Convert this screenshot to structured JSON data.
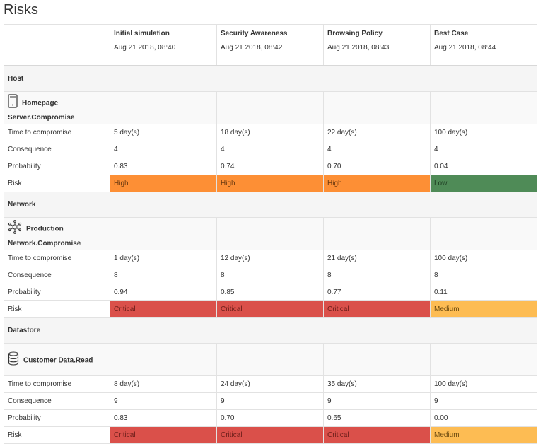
{
  "page_title": "Risks",
  "scenarios": [
    {
      "name": "Initial simulation",
      "date": "Aug 21 2018, 08:40"
    },
    {
      "name": "Security Awareness",
      "date": "Aug 21 2018, 08:42"
    },
    {
      "name": "Browsing Policy",
      "date": "Aug 21 2018, 08:43"
    },
    {
      "name": "Best Case",
      "date": "Aug 21 2018, 08:44"
    }
  ],
  "row_labels": {
    "time": "Time to compromise",
    "consequence": "Consequence",
    "probability": "Probability",
    "risk": "Risk"
  },
  "risk_colors": {
    "High": "#fd8f35",
    "Low": "#4f8b57",
    "Critical": "#da504a",
    "Medium": "#fdbc53"
  },
  "sections": [
    {
      "category": "Host",
      "asset_icon": "server-icon",
      "asset_line1": "Homepage",
      "asset_line2": "Server.Compromise",
      "time": [
        "5 day(s)",
        "18 day(s)",
        "22 day(s)",
        "100 day(s)"
      ],
      "consequence": [
        "4",
        "4",
        "4",
        "4"
      ],
      "probability": [
        "0.83",
        "0.74",
        "0.70",
        "0.04"
      ],
      "risk": [
        "High",
        "High",
        "High",
        "Low"
      ]
    },
    {
      "category": "Network",
      "asset_icon": "network-icon",
      "asset_line1": "Production",
      "asset_line2": "Network.Compromise",
      "time": [
        "1 day(s)",
        "12 day(s)",
        "21 day(s)",
        "100 day(s)"
      ],
      "consequence": [
        "8",
        "8",
        "8",
        "8"
      ],
      "probability": [
        "0.94",
        "0.85",
        "0.77",
        "0.11"
      ],
      "risk": [
        "Critical",
        "Critical",
        "Critical",
        "Medium"
      ]
    },
    {
      "category": "Datastore",
      "asset_icon": "database-icon",
      "asset_line1": "Customer Data.Read",
      "asset_line2": "",
      "time": [
        "8 day(s)",
        "24 day(s)",
        "35 day(s)",
        "100 day(s)"
      ],
      "consequence": [
        "9",
        "9",
        "9",
        "9"
      ],
      "probability": [
        "0.83",
        "0.70",
        "0.65",
        "0.00"
      ],
      "risk": [
        "Critical",
        "Critical",
        "Critical",
        "Medium"
      ]
    }
  ]
}
